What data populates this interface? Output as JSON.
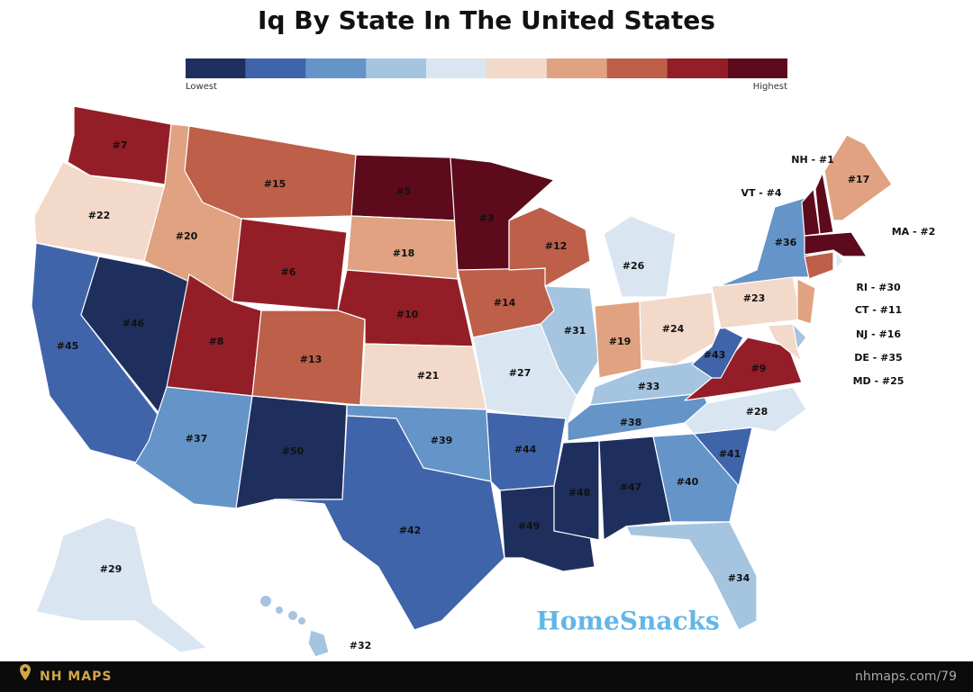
{
  "title": "Iq By State In The United States",
  "legend": {
    "colors": [
      "#1e2f5e",
      "#3f64aa",
      "#6494c8",
      "#a5c4e0",
      "#d9e6f1",
      "#f2d9c9",
      "#e0a280",
      "#bd5f49",
      "#941e27",
      "#5c0a1c"
    ],
    "low": "Lowest",
    "high": "Highest"
  },
  "states": [
    {
      "label": "#7",
      "color": "#941e27"
    },
    {
      "label": "#22",
      "color": "#f2d9c9"
    },
    {
      "label": "#45",
      "color": "#3f64aa"
    },
    {
      "label": "#46",
      "color": "#1e2f5e"
    },
    {
      "label": "#20",
      "color": "#e0a280"
    },
    {
      "label": "#15",
      "color": "#bd5f49"
    },
    {
      "label": "#6",
      "color": "#941e27"
    },
    {
      "label": "#8",
      "color": "#941e27"
    },
    {
      "label": "#37",
      "color": "#6494c8"
    },
    {
      "label": "#50",
      "color": "#1e2f5e"
    },
    {
      "label": "#13",
      "color": "#bd5f49"
    },
    {
      "label": "#5",
      "color": "#5c0a1c"
    },
    {
      "label": "#18",
      "color": "#e0a280"
    },
    {
      "label": "#10",
      "color": "#941e27"
    },
    {
      "label": "#21",
      "color": "#f2d9c9"
    },
    {
      "label": "#39",
      "color": "#6494c8"
    },
    {
      "label": "#42",
      "color": "#3f64aa"
    },
    {
      "label": "#3",
      "color": "#5c0a1c"
    },
    {
      "label": "#14",
      "color": "#bd5f49"
    },
    {
      "label": "#27",
      "color": "#d9e6f1"
    },
    {
      "label": "#44",
      "color": "#3f64aa"
    },
    {
      "label": "#49",
      "color": "#1e2f5e"
    },
    {
      "label": "#12",
      "color": "#bd5f49"
    },
    {
      "label": "#31",
      "color": "#a5c4e0"
    },
    {
      "label": "#26",
      "color": "#d9e6f1"
    },
    {
      "label": "#19",
      "color": "#e0a280"
    },
    {
      "label": "#24",
      "color": "#f2d9c9"
    },
    {
      "label": "#33",
      "color": "#a5c4e0"
    },
    {
      "label": "#38",
      "color": "#6494c8"
    },
    {
      "label": "#48",
      "color": "#1e2f5e"
    },
    {
      "label": "#47",
      "color": "#1e2f5e"
    },
    {
      "label": "#40",
      "color": "#6494c8"
    },
    {
      "label": "#34",
      "color": "#a5c4e0"
    },
    {
      "label": "#41",
      "color": "#3f64aa"
    },
    {
      "label": "#28",
      "color": "#d9e6f1"
    },
    {
      "label": "#9",
      "color": "#941e27"
    },
    {
      "label": "#43",
      "color": "#3f64aa"
    },
    {
      "label": "#23",
      "color": "#f2d9c9"
    },
    {
      "label": "#36",
      "color": "#6494c8"
    },
    {
      "label": "#17",
      "color": "#e0a280"
    },
    {
      "label": "#29",
      "color": "#d9e6f1"
    },
    {
      "label": "#32",
      "color": "#a5c4e0"
    },
    {
      "color": "#e0a280"
    },
    {
      "color": "#a5c4e0"
    },
    {
      "color": "#f2d9c9"
    },
    {
      "color": "#bd5f49"
    },
    {
      "color": "#d9e6f1"
    },
    {
      "color": "#5c0a1c"
    },
    {
      "color": "#5c0a1c"
    },
    {
      "color": "#5c0a1c"
    }
  ],
  "callouts": [
    "NH - #1",
    "VT - #4",
    "MA - #2",
    "RI - #30",
    "CT - #11",
    "NJ - #16",
    "DE - #35",
    "MD - #25"
  ],
  "watermark": "HomeSnacks",
  "footer": {
    "brand": "NH MAPS",
    "url": "nhmaps.com/79"
  }
}
